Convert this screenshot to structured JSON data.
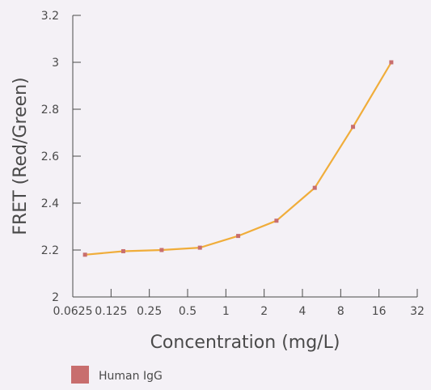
{
  "chart_data": {
    "type": "line",
    "xlabel": "Concentration (mg/L)",
    "ylabel": "FRET (Red/Green)",
    "x_scale": "log2",
    "xlim": [
      0.0625,
      32
    ],
    "ylim": [
      2,
      3.2
    ],
    "x_ticks": [
      0.0625,
      0.125,
      0.25,
      0.5,
      1,
      2,
      4,
      8,
      16,
      32
    ],
    "x_tick_labels": [
      "0.0625",
      "0.125",
      "0.25",
      "0.5",
      "1",
      "2",
      "4",
      "8",
      "16",
      "32"
    ],
    "y_ticks": [
      2,
      2.2,
      2.4,
      2.6,
      2.8,
      3,
      3.2
    ],
    "y_tick_labels": [
      "2",
      "2.2",
      "2.4",
      "2.6",
      "2.8",
      "3",
      "3.2"
    ],
    "grid": false,
    "legend_position": "bottom-left",
    "series": [
      {
        "name": "Human IgG",
        "line_color": "#f0ad3a",
        "marker_color": "#c86e6e",
        "x": [
          0.078,
          0.156,
          0.3125,
          0.625,
          1.25,
          2.5,
          5,
          10,
          20
        ],
        "y": [
          2.18,
          2.195,
          2.2,
          2.21,
          2.26,
          2.325,
          2.465,
          2.725,
          3.0
        ]
      }
    ]
  }
}
